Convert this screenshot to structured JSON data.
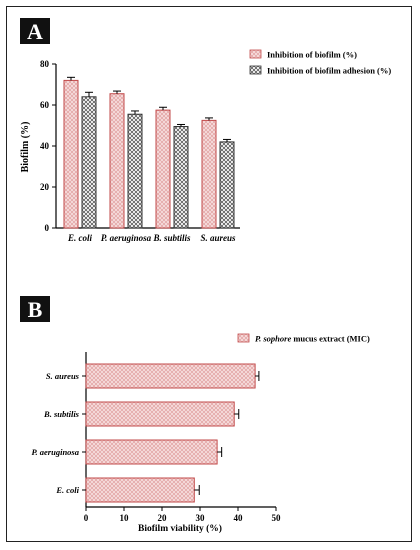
{
  "chart_data": [
    {
      "panel_label": "A",
      "type": "bar",
      "orientation": "vertical",
      "categories": [
        "E. coli",
        "P. aeruginosa",
        "B. subtilis",
        "S. aureus"
      ],
      "series": [
        {
          "name": "Inhibition of biofilm (%)",
          "values": [
            72,
            65.5,
            57.5,
            52.5
          ],
          "errors": [
            1.5,
            1.3,
            1.4,
            1.2
          ]
        },
        {
          "name": "Inhibition of biofilm adhesion (%)",
          "values": [
            64,
            55.5,
            49.5,
            42
          ],
          "errors": [
            2.2,
            1.6,
            1.0,
            1.2
          ]
        }
      ],
      "ylabel": "Biofilm (%)",
      "xlabel": "",
      "ylim": [
        0,
        80
      ],
      "yticks": [
        "0",
        "20",
        "40",
        "60",
        "80"
      ],
      "legend_position": "top-right",
      "grid": false
    },
    {
      "panel_label": "B",
      "type": "bar",
      "orientation": "horizontal",
      "categories": [
        "S. aureus",
        "B. subtilis",
        "P. aeruginosa",
        "E. coli"
      ],
      "series": [
        {
          "name_italic": "P. sophore",
          "name_rest": " mucus extract (MIC)",
          "values": [
            44.5,
            39,
            34.5,
            28.5
          ],
          "errors": [
            1.0,
            1.2,
            1.2,
            1.3
          ]
        }
      ],
      "xlabel": "Biofilm viability (%)",
      "ylabel": "",
      "xlim": [
        0,
        50
      ],
      "xticks": [
        "0",
        "10",
        "20",
        "30",
        "40",
        "50"
      ],
      "legend_position": "top-right",
      "grid": false
    }
  ],
  "colors": {
    "bar_fill": "#f2d2d2",
    "bar_stroke": "#c24a4a",
    "pattern_dark": "#444444",
    "axis": "#000000"
  }
}
